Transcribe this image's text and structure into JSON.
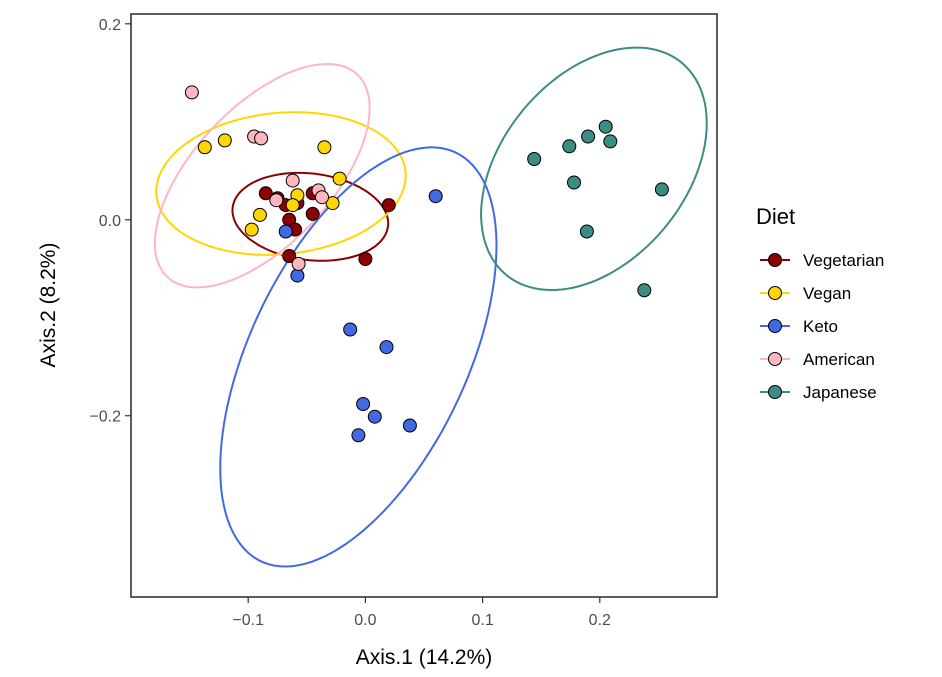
{
  "chart_data": {
    "type": "scatter",
    "xlabel": "Axis.1 (14.2%)",
    "ylabel": "Axis.2 (8.2%)",
    "xlim": [
      -0.2,
      0.3
    ],
    "ylim": [
      -0.385,
      0.21
    ],
    "x_ticks": [
      -0.1,
      0.0,
      0.1,
      0.2
    ],
    "x_tick_labels": [
      "−0.1",
      "0.0",
      "0.1",
      "0.2"
    ],
    "y_ticks": [
      0.2,
      0.0,
      -0.2
    ],
    "y_tick_labels": [
      "0.2",
      "0.0",
      "−0.2"
    ],
    "grid": false,
    "ellipses": true,
    "legend": {
      "title": "Diet",
      "position": "right"
    },
    "series": [
      {
        "name": "Vegetarian",
        "color": "#8B0000",
        "points": [
          {
            "x": -0.085,
            "y": 0.027
          },
          {
            "x": -0.075,
            "y": 0.022
          },
          {
            "x": -0.068,
            "y": 0.015
          },
          {
            "x": -0.058,
            "y": 0.017
          },
          {
            "x": -0.045,
            "y": 0.027
          },
          {
            "x": -0.065,
            "y": 0.0
          },
          {
            "x": -0.045,
            "y": 0.006
          },
          {
            "x": -0.06,
            "y": -0.01
          },
          {
            "x": -0.065,
            "y": -0.037
          },
          {
            "x": 0.0,
            "y": -0.04
          },
          {
            "x": 0.02,
            "y": 0.015
          }
        ],
        "ellipse": {
          "cx": -0.047,
          "cy": 0.003,
          "rx": 0.067,
          "ry": 0.044,
          "angle": -10
        }
      },
      {
        "name": "Vegan",
        "color": "#FFD700",
        "points": [
          {
            "x": -0.137,
            "y": 0.074
          },
          {
            "x": -0.12,
            "y": 0.081
          },
          {
            "x": -0.035,
            "y": 0.074
          },
          {
            "x": -0.022,
            "y": 0.042
          },
          {
            "x": -0.058,
            "y": 0.025
          },
          {
            "x": -0.062,
            "y": 0.015
          },
          {
            "x": -0.028,
            "y": 0.017
          },
          {
            "x": -0.09,
            "y": 0.005
          },
          {
            "x": -0.097,
            "y": -0.01
          }
        ],
        "ellipse": {
          "cx": -0.072,
          "cy": 0.037,
          "rx": 0.107,
          "ry": 0.072,
          "angle": 8
        }
      },
      {
        "name": "Keto",
        "color": "#4169E1",
        "points": [
          {
            "x": 0.06,
            "y": 0.024
          },
          {
            "x": -0.068,
            "y": -0.012
          },
          {
            "x": -0.058,
            "y": -0.057
          },
          {
            "x": -0.013,
            "y": -0.112
          },
          {
            "x": 0.018,
            "y": -0.13
          },
          {
            "x": -0.002,
            "y": -0.188
          },
          {
            "x": 0.008,
            "y": -0.201
          },
          {
            "x": 0.038,
            "y": -0.21
          },
          {
            "x": -0.006,
            "y": -0.22
          }
        ],
        "ellipse": {
          "cx": -0.006,
          "cy": -0.14,
          "rx": 0.095,
          "ry": 0.225,
          "angle": -20
        }
      },
      {
        "name": "American",
        "color": "#FFB6C1",
        "points": [
          {
            "x": -0.148,
            "y": 0.13
          },
          {
            "x": -0.095,
            "y": 0.085
          },
          {
            "x": -0.089,
            "y": 0.083
          },
          {
            "x": -0.062,
            "y": 0.04
          },
          {
            "x": -0.04,
            "y": 0.03
          },
          {
            "x": -0.037,
            "y": 0.023
          },
          {
            "x": -0.076,
            "y": 0.02
          },
          {
            "x": -0.057,
            "y": -0.045
          }
        ],
        "ellipse": {
          "cx": -0.088,
          "cy": 0.045,
          "rx": 0.063,
          "ry": 0.132,
          "angle": -35
        }
      },
      {
        "name": "Japanese",
        "color": "#3A8C84",
        "points": [
          {
            "x": 0.144,
            "y": 0.062
          },
          {
            "x": 0.174,
            "y": 0.075
          },
          {
            "x": 0.19,
            "y": 0.085
          },
          {
            "x": 0.205,
            "y": 0.095
          },
          {
            "x": 0.209,
            "y": 0.08
          },
          {
            "x": 0.178,
            "y": 0.038
          },
          {
            "x": 0.253,
            "y": 0.031
          },
          {
            "x": 0.189,
            "y": -0.012
          },
          {
            "x": 0.238,
            "y": -0.072
          }
        ],
        "ellipse": {
          "cx": 0.195,
          "cy": 0.052,
          "rx": 0.083,
          "ry": 0.133,
          "angle": -28
        }
      }
    ]
  }
}
